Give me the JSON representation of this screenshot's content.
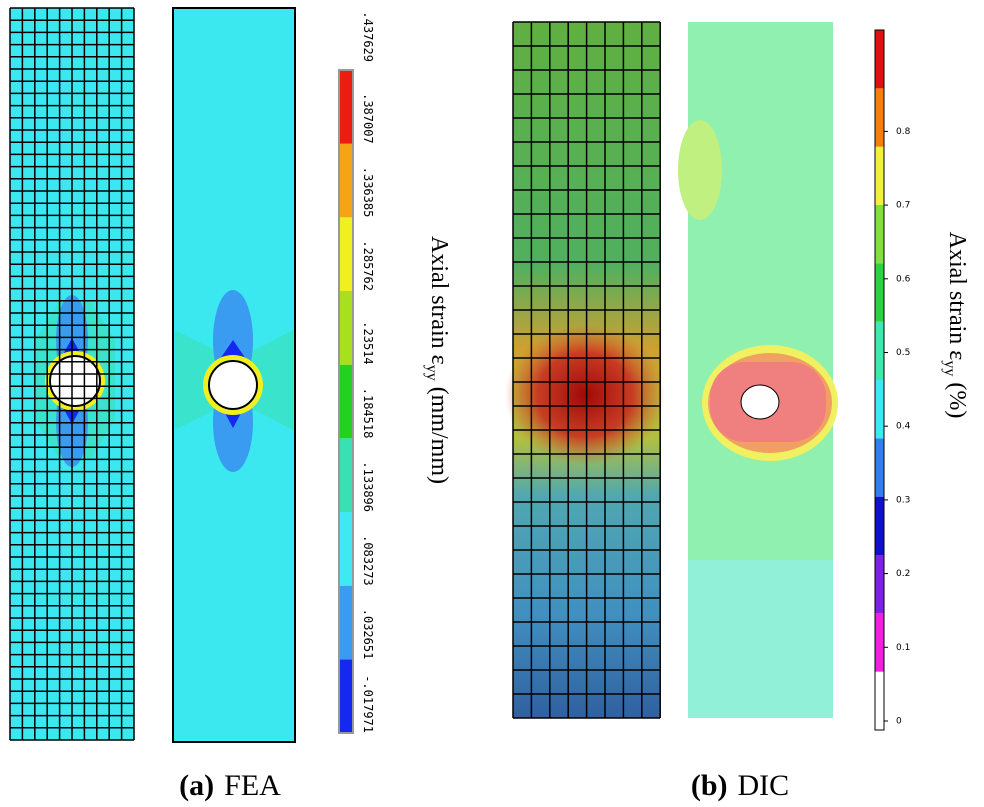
{
  "panels": [
    {
      "caption_tag": "(a)",
      "caption": "FEA",
      "label": "Axial strain ε",
      "label_sub": "yy",
      "label_unit": "(mm/mm)",
      "ticks": [
        "-.017971",
        ".032651",
        ".083273",
        ".133896",
        ".184518",
        ".23514",
        ".285762",
        ".336385",
        ".387007",
        ".437629"
      ],
      "colors": [
        "#1428f0",
        "#3a9cf0",
        "#40e8f4",
        "#38e0b4",
        "#24d020",
        "#a8e020",
        "#f0f020",
        "#f4a414",
        "#ec1c10"
      ]
    },
    {
      "caption_tag": "(b)",
      "caption": "DIC",
      "label": "Axial strain ε",
      "label_sub": "yy",
      "label_unit": "(%)",
      "ticks": [
        "0",
        "0.1",
        "0.2",
        "0.3",
        "0.4",
        "0.5",
        "0.6",
        "0.7",
        "0.8"
      ],
      "colors": [
        "#ffffff",
        "#f020e0",
        "#8020e0",
        "#1010c8",
        "#3080e8",
        "#40e8f4",
        "#40e8b0",
        "#30d040",
        "#80e040",
        "#f0f040",
        "#f08010",
        "#e01010"
      ]
    }
  ]
}
